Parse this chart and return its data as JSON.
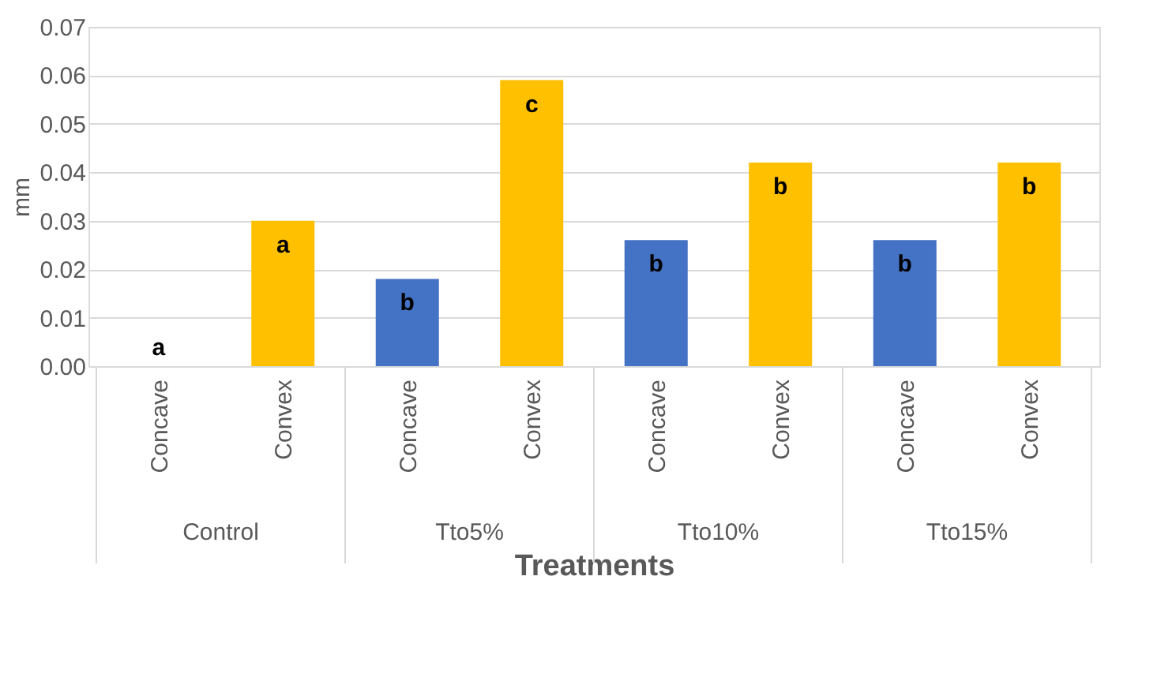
{
  "chart_data": {
    "type": "bar",
    "categories": [
      "Concave",
      "Convex",
      "Concave",
      "Convex",
      "Concave",
      "Convex",
      "Concave",
      "Convex"
    ],
    "values": [
      0,
      0.03,
      0.018,
      0.059,
      0.026,
      0.042,
      0.026,
      0.042
    ],
    "colors": [
      "#4472c4",
      "#ffc000",
      "#4472c4",
      "#ffc000",
      "#4472c4",
      "#ffc000",
      "#4472c4",
      "#ffc000"
    ],
    "value_labels": [
      "a",
      "a",
      "b",
      "c",
      "b",
      "b",
      "b",
      "b"
    ],
    "annotations": [
      "Control",
      "Tto5%",
      "Tto10%",
      "Tto15%"
    ],
    "xlabel": "Treatments",
    "ylabel": "mm",
    "ylim": [
      0,
      0.07
    ],
    "yticks": [
      {
        "value": 0,
        "label": "0.00"
      },
      {
        "value": 0.01,
        "label": "0.01"
      },
      {
        "value": 0.02,
        "label": "0.02"
      },
      {
        "value": 0.03,
        "label": "0.03"
      },
      {
        "value": 0.04,
        "label": "0.04"
      },
      {
        "value": 0.05,
        "label": "0.05"
      },
      {
        "value": 0.06,
        "label": "0.06"
      },
      {
        "value": 0.07,
        "label": "0.07"
      }
    ],
    "grid": "y"
  }
}
